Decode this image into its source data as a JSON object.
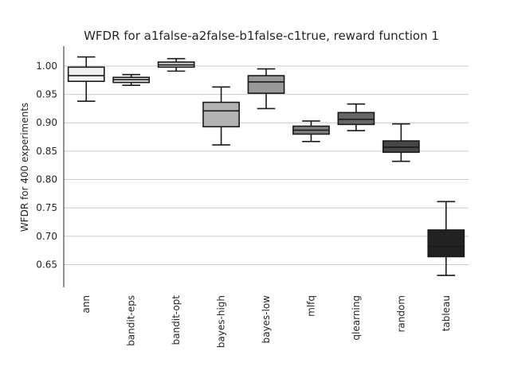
{
  "chart_data": {
    "type": "box",
    "title": "WFDR for a1false-a2false-b1false-c1true, reward function 1",
    "xlabel": "",
    "ylabel": "WFDR for 400 experiments",
    "ylim": [
      0.61,
      1.035
    ],
    "yticks": [
      0.65,
      0.7,
      0.75,
      0.8,
      0.85,
      0.9,
      0.95,
      1.0
    ],
    "ytick_labels": [
      "0.65",
      "0.70",
      "0.75",
      "0.80",
      "0.85",
      "0.90",
      "0.95",
      "1.00"
    ],
    "grid": "horizontal",
    "categories": [
      "ann",
      "bandit-eps",
      "bandit-opt",
      "bayes-high",
      "bayes-low",
      "mlfq",
      "qlearning",
      "random",
      "tableau"
    ],
    "boxes": [
      {
        "whislo": 0.938,
        "q1": 0.973,
        "med": 0.983,
        "q3": 0.998,
        "whishi": 1.016,
        "color": "#f2f2f2"
      },
      {
        "whislo": 0.966,
        "q1": 0.971,
        "med": 0.976,
        "q3": 0.98,
        "whishi": 0.985,
        "color": "#e0e0e0"
      },
      {
        "whislo": 0.991,
        "q1": 0.998,
        "med": 1.002,
        "q3": 1.007,
        "whishi": 1.013,
        "color": "#cfcfcf"
      },
      {
        "whislo": 0.861,
        "q1": 0.893,
        "med": 0.921,
        "q3": 0.936,
        "whishi": 0.963,
        "color": "#b3b3b3"
      },
      {
        "whislo": 0.925,
        "q1": 0.952,
        "med": 0.972,
        "q3": 0.983,
        "whishi": 0.995,
        "color": "#999999"
      },
      {
        "whislo": 0.867,
        "q1": 0.88,
        "med": 0.887,
        "q3": 0.894,
        "whishi": 0.903,
        "color": "#808080"
      },
      {
        "whislo": 0.886,
        "q1": 0.897,
        "med": 0.906,
        "q3": 0.918,
        "whishi": 0.933,
        "color": "#666666"
      },
      {
        "whislo": 0.832,
        "q1": 0.848,
        "med": 0.857,
        "q3": 0.868,
        "whishi": 0.898,
        "color": "#474747"
      },
      {
        "whislo": 0.631,
        "q1": 0.664,
        "med": 0.682,
        "q3": 0.711,
        "whishi": 0.761,
        "color": "#222222"
      }
    ]
  }
}
